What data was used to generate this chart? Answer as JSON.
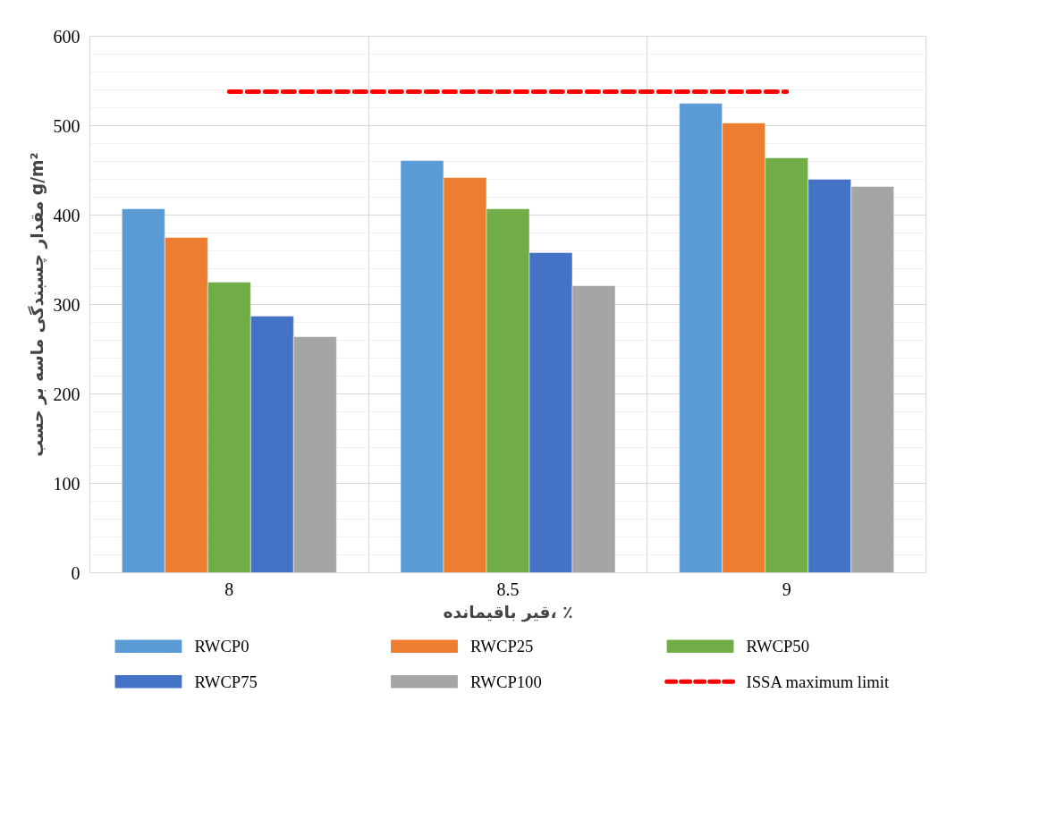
{
  "chart_data": {
    "type": "bar",
    "xlabel": "قیر باقیمانده، ٪",
    "ylabel": "مقدار چسبندگی ماسه بر حسب g/m²",
    "categories": [
      "8",
      "8.5",
      "9"
    ],
    "series": [
      {
        "name": "RWCP0",
        "color": "#5b9bd5",
        "values": [
          407,
          461,
          525
        ]
      },
      {
        "name": "RWCP25",
        "color": "#ed7d31",
        "values": [
          375,
          442,
          503
        ]
      },
      {
        "name": "RWCP50",
        "color": "#70ad47",
        "values": [
          325,
          407,
          464
        ]
      },
      {
        "name": "RWCP75",
        "color": "#4472c4",
        "values": [
          287,
          358,
          440
        ]
      },
      {
        "name": "RWCP100",
        "color": "#a5a5a5",
        "values": [
          264,
          321,
          432
        ]
      },
      {
        "name": "ISSA maximum limit",
        "color": "#ff0000",
        "type": "line",
        "line_style": "dashed",
        "values": [
          538,
          538,
          538
        ]
      }
    ],
    "ylim": [
      0,
      600
    ],
    "yticks": [
      0,
      100,
      200,
      300,
      400,
      500,
      600
    ],
    "grid": true,
    "legend": "bottom"
  }
}
